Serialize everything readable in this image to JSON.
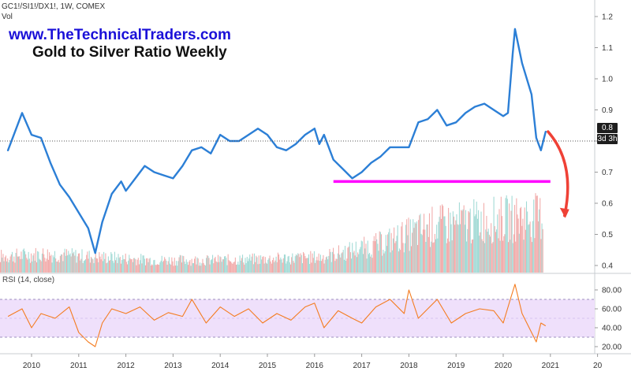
{
  "header": {
    "symbol": "GC1!/SI1!/DX1!, 1W, COMEX",
    "volume_label": "Vol",
    "website": "www.TheTechnicalTraders.com",
    "title": "Gold to Silver Ratio Weekly"
  },
  "badges": {
    "last_price": "0.8",
    "countdown": "3d 3h"
  },
  "rsi": {
    "label": "RSI (14, close)"
  },
  "colors": {
    "price_line": "#2c7fd6",
    "support_line": "#ff00ff",
    "projection_arrow": "#ef4136",
    "rsi_line": "#f47c20",
    "rsi_band": "#efe0fb",
    "vol_up": "#9fd9d4",
    "vol_down": "#f1aaa9"
  },
  "chart_data": [
    {
      "type": "line",
      "title": "Gold to Silver Ratio Weekly",
      "x": [
        "2009.5",
        "2009.8",
        "2010.0",
        "2010.2",
        "2010.4",
        "2010.6",
        "2010.8",
        "2011.0",
        "2011.2",
        "2011.35",
        "2011.5",
        "2011.7",
        "2011.9",
        "2012.0",
        "2012.2",
        "2012.4",
        "2012.6",
        "2012.8",
        "2013.0",
        "2013.2",
        "2013.4",
        "2013.6",
        "2013.8",
        "2014.0",
        "2014.2",
        "2014.4",
        "2014.6",
        "2014.8",
        "2015.0",
        "2015.2",
        "2015.4",
        "2015.6",
        "2015.8",
        "2016.0",
        "2016.1",
        "2016.2",
        "2016.4",
        "2016.6",
        "2016.8",
        "2017.0",
        "2017.2",
        "2017.4",
        "2017.6",
        "2017.8",
        "2018.0",
        "2018.2",
        "2018.4",
        "2018.6",
        "2018.8",
        "2019.0",
        "2019.2",
        "2019.4",
        "2019.6",
        "2019.8",
        "2020.0",
        "2020.1",
        "2020.2",
        "2020.25",
        "2020.4",
        "2020.6",
        "2020.7",
        "2020.8",
        "2020.9"
      ],
      "values": [
        0.77,
        0.89,
        0.82,
        0.81,
        0.73,
        0.66,
        0.62,
        0.57,
        0.52,
        0.44,
        0.54,
        0.63,
        0.67,
        0.64,
        0.68,
        0.72,
        0.7,
        0.69,
        0.68,
        0.72,
        0.77,
        0.78,
        0.76,
        0.82,
        0.8,
        0.8,
        0.82,
        0.84,
        0.82,
        0.78,
        0.77,
        0.79,
        0.82,
        0.84,
        0.79,
        0.82,
        0.74,
        0.71,
        0.68,
        0.7,
        0.73,
        0.75,
        0.78,
        0.78,
        0.78,
        0.86,
        0.87,
        0.9,
        0.85,
        0.86,
        0.89,
        0.91,
        0.92,
        0.9,
        0.88,
        0.89,
        1.08,
        1.16,
        1.05,
        0.95,
        0.81,
        0.77,
        0.83
      ],
      "xlabel": "",
      "ylabel": "",
      "ylim": [
        0.38,
        1.22
      ],
      "y_ticks": [
        "0.4",
        "0.5",
        "0.6",
        "0.7",
        "0.8",
        "0.9",
        "1.0",
        "1.1",
        "1.2"
      ],
      "x_ticks": [
        "2010",
        "2011",
        "2012",
        "2013",
        "2014",
        "2015",
        "2016",
        "2017",
        "2018",
        "2019",
        "2020",
        "2021",
        "20"
      ],
      "support_level": 0.67,
      "support_range": [
        2016.4,
        2021.0
      ],
      "projection_arrow": {
        "from": [
          2020.95,
          0.83
        ],
        "to": [
          2021.3,
          0.56
        ]
      }
    },
    {
      "type": "bar",
      "title": "Vol",
      "x_range": [
        2009.1,
        2020.85
      ],
      "trend": [
        0.25,
        0.3,
        0.25,
        0.2,
        0.2,
        0.22,
        0.25,
        0.45,
        0.75,
        0.85,
        0.9
      ],
      "ylim": [
        0,
        1
      ]
    },
    {
      "type": "line",
      "title": "RSI (14, close)",
      "x": [
        "2009.5",
        "2009.8",
        "2010.0",
        "2010.2",
        "2010.5",
        "2010.8",
        "2011.0",
        "2011.2",
        "2011.35",
        "2011.5",
        "2011.7",
        "2012.0",
        "2012.3",
        "2012.6",
        "2012.9",
        "2013.2",
        "2013.4",
        "2013.7",
        "2014.0",
        "2014.3",
        "2014.6",
        "2014.9",
        "2015.2",
        "2015.5",
        "2015.8",
        "2016.0",
        "2016.2",
        "2016.5",
        "2016.8",
        "2017.0",
        "2017.3",
        "2017.6",
        "2017.9",
        "2018.0",
        "2018.2",
        "2018.4",
        "2018.6",
        "2018.9",
        "2019.2",
        "2019.5",
        "2019.8",
        "2020.0",
        "2020.15",
        "2020.25",
        "2020.4",
        "2020.55",
        "2020.7",
        "2020.8",
        "2020.9"
      ],
      "values": [
        52,
        60,
        40,
        55,
        50,
        62,
        35,
        25,
        20,
        45,
        60,
        55,
        62,
        48,
        56,
        52,
        70,
        45,
        62,
        52,
        60,
        45,
        55,
        48,
        62,
        66,
        40,
        58,
        50,
        45,
        62,
        70,
        55,
        80,
        50,
        60,
        70,
        45,
        55,
        60,
        58,
        45,
        70,
        86,
        55,
        40,
        25,
        45,
        42
      ],
      "ylim": [
        15,
        92
      ],
      "y_ticks": [
        "20.00",
        "40.00",
        "60.00",
        "80.00"
      ],
      "band": [
        30,
        70
      ]
    }
  ]
}
